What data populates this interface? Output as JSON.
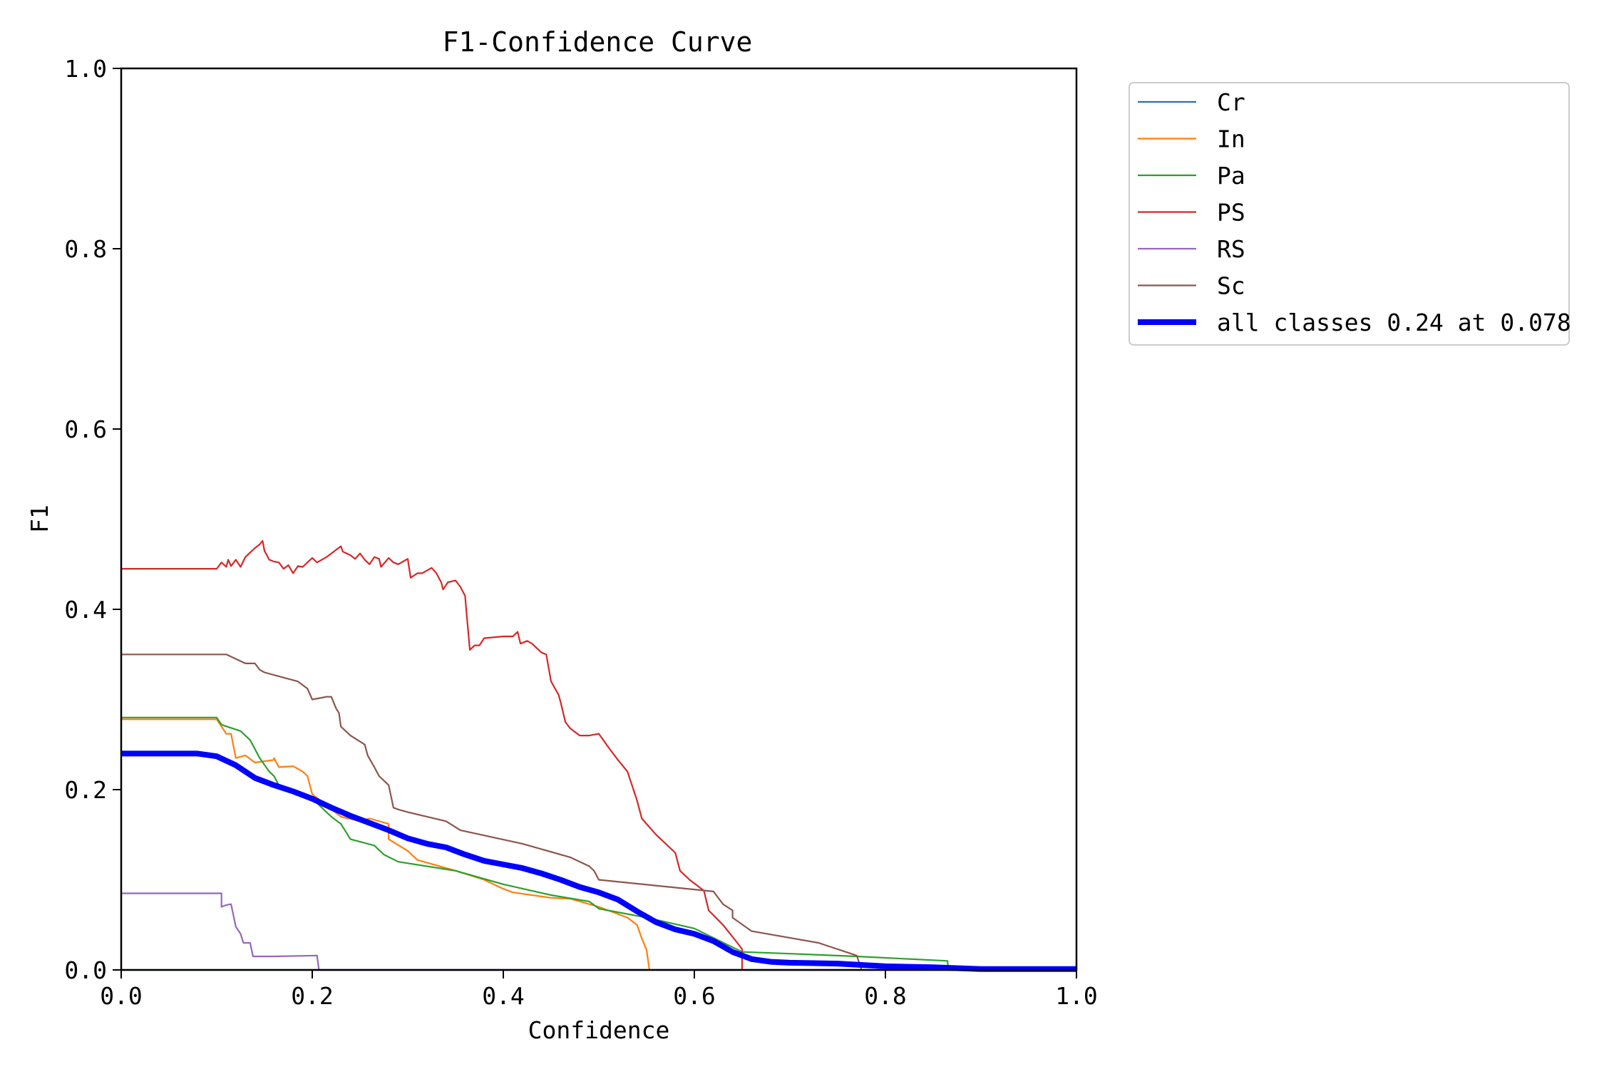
{
  "chart_data": {
    "type": "line",
    "title": "F1-Confidence Curve",
    "xlabel": "Confidence",
    "ylabel": "F1",
    "xlim": [
      0,
      1
    ],
    "ylim": [
      0,
      1
    ],
    "x_ticks": [
      "0.0",
      "0.2",
      "0.4",
      "0.6",
      "0.8",
      "1.0"
    ],
    "y_ticks": [
      "0.0",
      "0.2",
      "0.4",
      "0.6",
      "0.8",
      "1.0"
    ],
    "grid": false,
    "legend_position": "outside-top-right",
    "series": [
      {
        "name": "Cr",
        "color": "#1f77b4",
        "points": [
          [
            0,
            0
          ],
          [
            1,
            0
          ]
        ]
      },
      {
        "name": "In",
        "color": "#ff7f0e",
        "points": [
          [
            0,
            0.278
          ],
          [
            0.1,
            0.278
          ],
          [
            0.11,
            0.262
          ],
          [
            0.115,
            0.262
          ],
          [
            0.12,
            0.235
          ],
          [
            0.13,
            0.238
          ],
          [
            0.14,
            0.23
          ],
          [
            0.16,
            0.233
          ],
          [
            0.16,
            0.235
          ],
          [
            0.165,
            0.225
          ],
          [
            0.18,
            0.226
          ],
          [
            0.19,
            0.22
          ],
          [
            0.195,
            0.215
          ],
          [
            0.2,
            0.195
          ],
          [
            0.22,
            0.178
          ],
          [
            0.23,
            0.17
          ],
          [
            0.25,
            0.165
          ],
          [
            0.26,
            0.168
          ],
          [
            0.28,
            0.162
          ],
          [
            0.28,
            0.145
          ],
          [
            0.3,
            0.132
          ],
          [
            0.31,
            0.122
          ],
          [
            0.35,
            0.11
          ],
          [
            0.38,
            0.1
          ],
          [
            0.4,
            0.09
          ],
          [
            0.41,
            0.086
          ],
          [
            0.45,
            0.08
          ],
          [
            0.47,
            0.079
          ],
          [
            0.5,
            0.07
          ],
          [
            0.53,
            0.058
          ],
          [
            0.54,
            0.05
          ],
          [
            0.545,
            0.035
          ],
          [
            0.55,
            0.022
          ],
          [
            0.553,
            0
          ]
        ]
      },
      {
        "name": "Pa",
        "color": "#2ca02c",
        "points": [
          [
            0,
            0.28
          ],
          [
            0.1,
            0.28
          ],
          [
            0.105,
            0.272
          ],
          [
            0.125,
            0.265
          ],
          [
            0.135,
            0.255
          ],
          [
            0.145,
            0.235
          ],
          [
            0.155,
            0.22
          ],
          [
            0.16,
            0.215
          ],
          [
            0.165,
            0.205
          ],
          [
            0.2,
            0.19
          ],
          [
            0.21,
            0.18
          ],
          [
            0.22,
            0.17
          ],
          [
            0.23,
            0.162
          ],
          [
            0.24,
            0.145
          ],
          [
            0.265,
            0.138
          ],
          [
            0.275,
            0.128
          ],
          [
            0.29,
            0.12
          ],
          [
            0.35,
            0.11
          ],
          [
            0.4,
            0.095
          ],
          [
            0.45,
            0.083
          ],
          [
            0.49,
            0.076
          ],
          [
            0.5,
            0.068
          ],
          [
            0.55,
            0.058
          ],
          [
            0.6,
            0.046
          ],
          [
            0.65,
            0.02
          ],
          [
            0.7,
            0.018
          ],
          [
            0.77,
            0.015
          ],
          [
            0.865,
            0.01
          ],
          [
            0.866,
            0
          ],
          [
            1,
            0
          ]
        ]
      },
      {
        "name": "PS",
        "color": "#d62728",
        "points": [
          [
            0,
            0.445
          ],
          [
            0.1,
            0.445
          ],
          [
            0.105,
            0.452
          ],
          [
            0.11,
            0.447
          ],
          [
            0.112,
            0.455
          ],
          [
            0.115,
            0.448
          ],
          [
            0.12,
            0.455
          ],
          [
            0.125,
            0.447
          ],
          [
            0.13,
            0.458
          ],
          [
            0.135,
            0.463
          ],
          [
            0.14,
            0.468
          ],
          [
            0.145,
            0.472
          ],
          [
            0.148,
            0.476
          ],
          [
            0.15,
            0.465
          ],
          [
            0.155,
            0.455
          ],
          [
            0.16,
            0.453
          ],
          [
            0.165,
            0.452
          ],
          [
            0.17,
            0.445
          ],
          [
            0.175,
            0.449
          ],
          [
            0.18,
            0.44
          ],
          [
            0.185,
            0.448
          ],
          [
            0.19,
            0.447
          ],
          [
            0.195,
            0.452
          ],
          [
            0.2,
            0.457
          ],
          [
            0.205,
            0.452
          ],
          [
            0.21,
            0.455
          ],
          [
            0.215,
            0.458
          ],
          [
            0.22,
            0.462
          ],
          [
            0.225,
            0.466
          ],
          [
            0.23,
            0.47
          ],
          [
            0.232,
            0.464
          ],
          [
            0.24,
            0.46
          ],
          [
            0.245,
            0.456
          ],
          [
            0.25,
            0.462
          ],
          [
            0.255,
            0.455
          ],
          [
            0.26,
            0.45
          ],
          [
            0.265,
            0.458
          ],
          [
            0.27,
            0.456
          ],
          [
            0.272,
            0.447
          ],
          [
            0.28,
            0.457
          ],
          [
            0.285,
            0.452
          ],
          [
            0.29,
            0.45
          ],
          [
            0.295,
            0.453
          ],
          [
            0.3,
            0.456
          ],
          [
            0.303,
            0.435
          ],
          [
            0.31,
            0.44
          ],
          [
            0.315,
            0.44
          ],
          [
            0.32,
            0.443
          ],
          [
            0.325,
            0.446
          ],
          [
            0.33,
            0.44
          ],
          [
            0.335,
            0.43
          ],
          [
            0.337,
            0.422
          ],
          [
            0.342,
            0.43
          ],
          [
            0.35,
            0.432
          ],
          [
            0.355,
            0.425
          ],
          [
            0.36,
            0.415
          ],
          [
            0.362,
            0.39
          ],
          [
            0.365,
            0.355
          ],
          [
            0.37,
            0.36
          ],
          [
            0.375,
            0.36
          ],
          [
            0.38,
            0.368
          ],
          [
            0.4,
            0.37
          ],
          [
            0.41,
            0.37
          ],
          [
            0.415,
            0.375
          ],
          [
            0.418,
            0.362
          ],
          [
            0.425,
            0.365
          ],
          [
            0.43,
            0.362
          ],
          [
            0.44,
            0.352
          ],
          [
            0.445,
            0.35
          ],
          [
            0.45,
            0.32
          ],
          [
            0.458,
            0.305
          ],
          [
            0.46,
            0.297
          ],
          [
            0.465,
            0.275
          ],
          [
            0.47,
            0.268
          ],
          [
            0.48,
            0.26
          ],
          [
            0.49,
            0.26
          ],
          [
            0.5,
            0.262
          ],
          [
            0.51,
            0.247
          ],
          [
            0.52,
            0.233
          ],
          [
            0.53,
            0.22
          ],
          [
            0.54,
            0.188
          ],
          [
            0.545,
            0.168
          ],
          [
            0.56,
            0.15
          ],
          [
            0.58,
            0.13
          ],
          [
            0.585,
            0.11
          ],
          [
            0.595,
            0.1
          ],
          [
            0.61,
            0.088
          ],
          [
            0.615,
            0.066
          ],
          [
            0.63,
            0.05
          ],
          [
            0.645,
            0.03
          ],
          [
            0.65,
            0.023
          ],
          [
            0.65,
            0
          ]
        ]
      },
      {
        "name": "RS",
        "color": "#9467bd",
        "points": [
          [
            0,
            0.085
          ],
          [
            0.105,
            0.085
          ],
          [
            0.105,
            0.07
          ],
          [
            0.11,
            0.072
          ],
          [
            0.115,
            0.073
          ],
          [
            0.12,
            0.048
          ],
          [
            0.125,
            0.04
          ],
          [
            0.128,
            0.03
          ],
          [
            0.135,
            0.03
          ],
          [
            0.138,
            0.015
          ],
          [
            0.16,
            0.015
          ],
          [
            0.205,
            0.016
          ],
          [
            0.207,
            0
          ],
          [
            1,
            0
          ]
        ]
      },
      {
        "name": "Sc",
        "color": "#8c564b",
        "points": [
          [
            0,
            0.35
          ],
          [
            0.11,
            0.35
          ],
          [
            0.13,
            0.34
          ],
          [
            0.14,
            0.34
          ],
          [
            0.145,
            0.333
          ],
          [
            0.15,
            0.33
          ],
          [
            0.185,
            0.32
          ],
          [
            0.195,
            0.312
          ],
          [
            0.2,
            0.3
          ],
          [
            0.21,
            0.302
          ],
          [
            0.215,
            0.303
          ],
          [
            0.22,
            0.303
          ],
          [
            0.225,
            0.29
          ],
          [
            0.228,
            0.285
          ],
          [
            0.23,
            0.27
          ],
          [
            0.235,
            0.265
          ],
          [
            0.24,
            0.26
          ],
          [
            0.255,
            0.25
          ],
          [
            0.258,
            0.238
          ],
          [
            0.265,
            0.225
          ],
          [
            0.27,
            0.215
          ],
          [
            0.275,
            0.21
          ],
          [
            0.28,
            0.205
          ],
          [
            0.285,
            0.18
          ],
          [
            0.29,
            0.178
          ],
          [
            0.3,
            0.175
          ],
          [
            0.34,
            0.165
          ],
          [
            0.355,
            0.155
          ],
          [
            0.42,
            0.14
          ],
          [
            0.47,
            0.125
          ],
          [
            0.49,
            0.115
          ],
          [
            0.495,
            0.11
          ],
          [
            0.5,
            0.1
          ],
          [
            0.62,
            0.087
          ],
          [
            0.63,
            0.073
          ],
          [
            0.64,
            0.066
          ],
          [
            0.64,
            0.058
          ],
          [
            0.66,
            0.043
          ],
          [
            0.73,
            0.03
          ],
          [
            0.77,
            0.016
          ],
          [
            0.775,
            0
          ]
        ]
      },
      {
        "name": "all classes 0.24 at 0.078",
        "color": "#0000ff",
        "width": 8,
        "points": [
          [
            0,
            0.24
          ],
          [
            0.08,
            0.24
          ],
          [
            0.1,
            0.237
          ],
          [
            0.12,
            0.227
          ],
          [
            0.14,
            0.213
          ],
          [
            0.16,
            0.205
          ],
          [
            0.18,
            0.198
          ],
          [
            0.2,
            0.19
          ],
          [
            0.22,
            0.18
          ],
          [
            0.24,
            0.171
          ],
          [
            0.26,
            0.163
          ],
          [
            0.28,
            0.155
          ],
          [
            0.3,
            0.146
          ],
          [
            0.32,
            0.14
          ],
          [
            0.34,
            0.136
          ],
          [
            0.36,
            0.128
          ],
          [
            0.38,
            0.121
          ],
          [
            0.4,
            0.117
          ],
          [
            0.42,
            0.113
          ],
          [
            0.44,
            0.107
          ],
          [
            0.46,
            0.1
          ],
          [
            0.48,
            0.092
          ],
          [
            0.5,
            0.086
          ],
          [
            0.52,
            0.078
          ],
          [
            0.54,
            0.065
          ],
          [
            0.56,
            0.053
          ],
          [
            0.58,
            0.045
          ],
          [
            0.6,
            0.04
          ],
          [
            0.62,
            0.032
          ],
          [
            0.64,
            0.02
          ],
          [
            0.66,
            0.012
          ],
          [
            0.68,
            0.009
          ],
          [
            0.7,
            0.008
          ],
          [
            0.75,
            0.007
          ],
          [
            0.8,
            0.004
          ],
          [
            0.85,
            0.003
          ],
          [
            0.9,
            0.001
          ],
          [
            1,
            0.001
          ]
        ]
      }
    ]
  }
}
